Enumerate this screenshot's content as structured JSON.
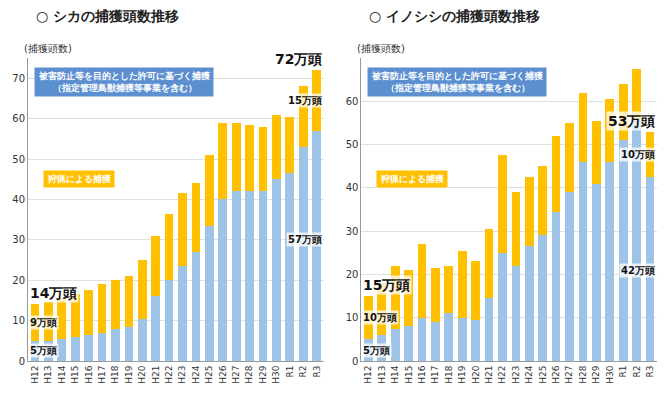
{
  "chart_data": [
    {
      "type": "bar",
      "title": "○ シカの捕獲頭数推移",
      "y_label": "(捕獲頭数)",
      "categories": [
        "H12",
        "H13",
        "H14",
        "H15",
        "H16",
        "H17",
        "H18",
        "H19",
        "H20",
        "H21",
        "H22",
        "H23",
        "H24",
        "H25",
        "H26",
        "H27",
        "H28",
        "H29",
        "H30",
        "R1",
        "R2",
        "R3"
      ],
      "series": [
        {
          "name": "被害防止等を目的とした許可に基づく捕獲（指定管理鳥獣捕獲等事業を含む）",
          "color": "#9dc3e6",
          "values": [
            5,
            5,
            5.5,
            6,
            6.5,
            7,
            8,
            8.5,
            10.5,
            16,
            20,
            23.5,
            27,
            33.5,
            40,
            42,
            42,
            42,
            45,
            46.5,
            53,
            57
          ]
        },
        {
          "name": "狩猟による捕獲",
          "color": "#ffc000",
          "values": [
            9,
            9.5,
            10,
            10.5,
            11,
            12,
            12,
            12.5,
            14.5,
            15,
            16.5,
            18,
            17,
            17.5,
            19,
            17,
            16.5,
            16,
            16,
            14,
            15,
            15
          ]
        }
      ],
      "stacked": true,
      "grid": true,
      "ylim": [
        0,
        75
      ],
      "yticks": [
        0,
        10,
        20,
        30,
        40,
        50,
        60,
        70
      ],
      "annotations": [
        {
          "text": "14万頭",
          "category": "H12",
          "y": 14
        },
        {
          "text": "9万頭",
          "category": "H12",
          "y": 9.5
        },
        {
          "text": "5万頭",
          "category": "H12",
          "y": 2.5
        },
        {
          "text": "72万頭",
          "category": "R3",
          "y": 72
        },
        {
          "text": "15万頭",
          "category": "R3",
          "y": 64.5
        },
        {
          "text": "57万頭",
          "category": "R3",
          "y": 30
        }
      ]
    },
    {
      "type": "bar",
      "title": "○ イノシシの捕獲頭数推移",
      "y_label": "(捕獲頭数)",
      "categories": [
        "H12",
        "H13",
        "H14",
        "H15",
        "H16",
        "H17",
        "H18",
        "H19",
        "H20",
        "H21",
        "H22",
        "H23",
        "H24",
        "H25",
        "H26",
        "H27",
        "H28",
        "H29",
        "H30",
        "R1",
        "R2",
        "R3"
      ],
      "series": [
        {
          "name": "被害防止等を目的とした許可に基づく捕獲（指定管理鳥獣捕獲等事業を含む）",
          "color": "#9dc3e6",
          "values": [
            5,
            6,
            7.5,
            8,
            10,
            9,
            11,
            10,
            9.5,
            14.5,
            25,
            22,
            26.5,
            29,
            34.5,
            39,
            46,
            41,
            46,
            51,
            56,
            42.4
          ]
        },
        {
          "name": "狩猟による捕獲",
          "color": "#ffc000",
          "values": [
            10,
            12,
            14.5,
            13,
            17,
            12.5,
            11,
            15.5,
            13.5,
            16,
            22.5,
            17,
            16,
            16,
            17.5,
            16,
            16,
            14.5,
            14.5,
            13,
            11.5,
            10.4
          ]
        }
      ],
      "stacked": true,
      "grid": true,
      "ylim": [
        0,
        70
      ],
      "yticks": [
        0,
        10,
        20,
        30,
        40,
        50,
        60
      ],
      "annotations": [
        {
          "text": "15万頭",
          "category": "H12",
          "y": 15
        },
        {
          "text": "10万頭",
          "category": "H12",
          "y": 10
        },
        {
          "text": "5万頭",
          "category": "H12",
          "y": 2.5
        },
        {
          "text": "53万頭",
          "category": "R3",
          "y": 53
        },
        {
          "text": "10万頭",
          "category": "R3",
          "y": 47.6
        },
        {
          "text": "42万頭",
          "category": "R3",
          "y": 21
        }
      ]
    }
  ]
}
